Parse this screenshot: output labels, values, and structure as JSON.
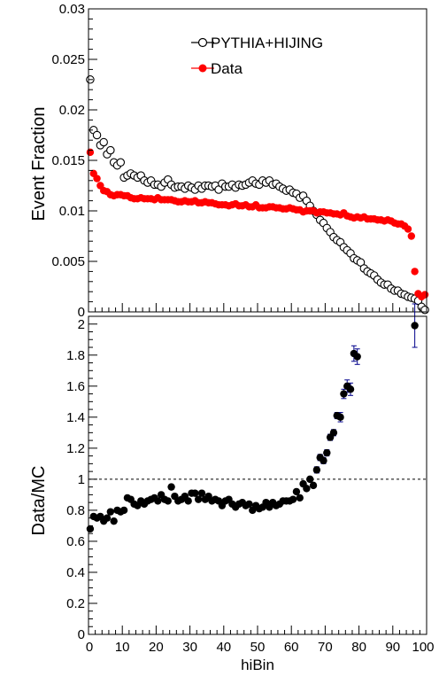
{
  "chart_data": [
    {
      "type": "scatter",
      "ylabel": "Event Fraction",
      "ylim": [
        0,
        0.03
      ],
      "xlim": [
        0,
        100
      ],
      "yticks": [
        0,
        0.005,
        0.01,
        0.015,
        0.02,
        0.025,
        0.03
      ],
      "ytick_labels": [
        "0",
        "0.005",
        "0.01",
        "0.015",
        "0.02",
        "0.025",
        "0.03"
      ],
      "legend_position": "top-right",
      "series": [
        {
          "name": "PYTHIA+HIJING",
          "marker": "open-circle",
          "color": "#000000",
          "x": [
            0.5,
            1.5,
            2.5,
            3.5,
            4.5,
            5.5,
            6.5,
            7.5,
            8.5,
            9.5,
            10.5,
            11.5,
            12.5,
            13.5,
            14.5,
            15.5,
            16.5,
            17.5,
            18.5,
            19.5,
            20.5,
            21.5,
            22.5,
            23.5,
            24.5,
            25.5,
            26.5,
            27.5,
            28.5,
            29.5,
            30.5,
            31.5,
            32.5,
            33.5,
            34.5,
            35.5,
            36.5,
            37.5,
            38.5,
            39.5,
            40.5,
            41.5,
            42.5,
            43.5,
            44.5,
            45.5,
            46.5,
            47.5,
            48.5,
            49.5,
            50.5,
            51.5,
            52.5,
            53.5,
            54.5,
            55.5,
            56.5,
            57.5,
            58.5,
            59.5,
            60.5,
            61.5,
            62.5,
            63.5,
            64.5,
            65.5,
            66.5,
            67.5,
            68.5,
            69.5,
            70.5,
            71.5,
            72.5,
            73.5,
            74.5,
            75.5,
            76.5,
            77.5,
            78.5,
            79.5,
            80.5,
            81.5,
            82.5,
            83.5,
            84.5,
            85.5,
            86.5,
            87.5,
            88.5,
            89.5,
            90.5,
            91.5,
            92.5,
            93.5,
            94.5,
            95.5,
            96.5,
            97.5,
            98.5,
            99.5
          ],
          "y": [
            0.023,
            0.018,
            0.0175,
            0.0165,
            0.0168,
            0.0156,
            0.016,
            0.0148,
            0.0145,
            0.0148,
            0.0133,
            0.0135,
            0.0137,
            0.0135,
            0.0133,
            0.0135,
            0.013,
            0.0128,
            0.013,
            0.0126,
            0.0126,
            0.0124,
            0.0128,
            0.0131,
            0.0126,
            0.0123,
            0.0124,
            0.0124,
            0.0122,
            0.0125,
            0.0123,
            0.0121,
            0.0125,
            0.0122,
            0.0125,
            0.0125,
            0.0124,
            0.0125,
            0.0121,
            0.0127,
            0.0124,
            0.0124,
            0.0126,
            0.0123,
            0.0126,
            0.0125,
            0.0126,
            0.0128,
            0.013,
            0.0127,
            0.0126,
            0.013,
            0.0128,
            0.013,
            0.0126,
            0.0127,
            0.0124,
            0.0122,
            0.012,
            0.0121,
            0.0118,
            0.0117,
            0.0113,
            0.0115,
            0.011,
            0.0105,
            0.01,
            0.0096,
            0.0091,
            0.0088,
            0.0083,
            0.0079,
            0.0074,
            0.0071,
            0.0069,
            0.0064,
            0.0061,
            0.0058,
            0.0053,
            0.0051,
            0.0049,
            0.0043,
            0.004,
            0.0038,
            0.0036,
            0.0032,
            0.0029,
            0.0027,
            0.0027,
            0.0023,
            0.0021,
            0.0021,
            0.0018,
            0.0017,
            0.0015,
            0.0014,
            0.0013,
            0.0011,
            0.0005,
            0.0002
          ]
        },
        {
          "name": "Data",
          "marker": "filled-circle",
          "color": "#ff0000",
          "x": [
            0.5,
            1.5,
            2.5,
            3.5,
            4.5,
            5.5,
            6.5,
            7.5,
            8.5,
            9.5,
            10.5,
            11.5,
            12.5,
            13.5,
            14.5,
            15.5,
            16.5,
            17.5,
            18.5,
            19.5,
            20.5,
            21.5,
            22.5,
            23.5,
            24.5,
            25.5,
            26.5,
            27.5,
            28.5,
            29.5,
            30.5,
            31.5,
            32.5,
            33.5,
            34.5,
            35.5,
            36.5,
            37.5,
            38.5,
            39.5,
            40.5,
            41.5,
            42.5,
            43.5,
            44.5,
            45.5,
            46.5,
            47.5,
            48.5,
            49.5,
            50.5,
            51.5,
            52.5,
            53.5,
            54.5,
            55.5,
            56.5,
            57.5,
            58.5,
            59.5,
            60.5,
            61.5,
            62.5,
            63.5,
            64.5,
            65.5,
            66.5,
            67.5,
            68.5,
            69.5,
            70.5,
            71.5,
            72.5,
            73.5,
            74.5,
            75.5,
            76.5,
            77.5,
            78.5,
            79.5,
            80.5,
            81.5,
            82.5,
            83.5,
            84.5,
            85.5,
            86.5,
            87.5,
            88.5,
            89.5,
            90.5,
            91.5,
            92.5,
            93.5,
            94.5,
            95.5,
            96.5,
            97.5,
            98.5,
            99.5
          ],
          "y": [
            0.0158,
            0.0137,
            0.0132,
            0.0125,
            0.012,
            0.0119,
            0.0116,
            0.0115,
            0.0116,
            0.0116,
            0.0115,
            0.0115,
            0.0113,
            0.0112,
            0.0112,
            0.0113,
            0.0112,
            0.0112,
            0.0112,
            0.0111,
            0.0113,
            0.0111,
            0.0111,
            0.0111,
            0.0111,
            0.011,
            0.0109,
            0.0109,
            0.011,
            0.0109,
            0.0109,
            0.011,
            0.0108,
            0.0108,
            0.0109,
            0.0108,
            0.0108,
            0.0107,
            0.0106,
            0.0106,
            0.0106,
            0.0105,
            0.0106,
            0.0107,
            0.0105,
            0.0105,
            0.0106,
            0.0104,
            0.0104,
            0.0106,
            0.0103,
            0.0103,
            0.0103,
            0.0104,
            0.0104,
            0.0103,
            0.0103,
            0.0102,
            0.0102,
            0.0103,
            0.0102,
            0.0101,
            0.0101,
            0.0099,
            0.01,
            0.01,
            0.01,
            0.0098,
            0.0099,
            0.0099,
            0.0098,
            0.0098,
            0.0097,
            0.0097,
            0.0096,
            0.0098,
            0.0095,
            0.0094,
            0.0093,
            0.0094,
            0.0093,
            0.0094,
            0.0092,
            0.0092,
            0.0092,
            0.0091,
            0.0091,
            0.009,
            0.0091,
            0.009,
            0.0088,
            0.0087,
            0.0087,
            0.0085,
            0.0082,
            0.0075,
            0.004,
            0.0018,
            0.0015,
            0.0017
          ]
        }
      ]
    },
    {
      "type": "scatter",
      "xlabel": "hiBin",
      "ylabel": "Data/MC",
      "xlim": [
        0,
        100
      ],
      "ylim": [
        0,
        2.05
      ],
      "xticks": [
        0,
        10,
        20,
        30,
        40,
        50,
        60,
        70,
        80,
        90,
        100
      ],
      "xtick_labels": [
        "0",
        "10",
        "20",
        "30",
        "40",
        "50",
        "60",
        "70",
        "80",
        "90",
        "100"
      ],
      "yticks": [
        0,
        0.2,
        0.4,
        0.6,
        0.8,
        1,
        1.2,
        1.4,
        1.6,
        1.8,
        2
      ],
      "ytick_labels": [
        "0",
        "0.2",
        "0.4",
        "0.6",
        "0.8",
        "1",
        "1.2",
        "1.4",
        "1.6",
        "1.8",
        "2"
      ],
      "reference_line": 1,
      "series": [
        {
          "marker": "filled-circle",
          "color": "#000000",
          "x": [
            0.5,
            1.5,
            2.5,
            3.5,
            4.5,
            5.5,
            6.5,
            7.5,
            8.5,
            9.5,
            10.5,
            11.5,
            12.5,
            13.5,
            14.5,
            15.5,
            16.5,
            17.5,
            18.5,
            19.5,
            20.5,
            21.5,
            22.5,
            23.5,
            24.5,
            25.5,
            26.5,
            27.5,
            28.5,
            29.5,
            30.5,
            31.5,
            32.5,
            33.5,
            34.5,
            35.5,
            36.5,
            37.5,
            38.5,
            39.5,
            40.5,
            41.5,
            42.5,
            43.5,
            44.5,
            45.5,
            46.5,
            47.5,
            48.5,
            49.5,
            50.5,
            51.5,
            52.5,
            53.5,
            54.5,
            55.5,
            56.5,
            57.5,
            58.5,
            59.5,
            60.5,
            61.5,
            62.5,
            63.5,
            64.5,
            65.5,
            66.5,
            67.5,
            68.5,
            69.5,
            70.5,
            71.5,
            72.5,
            73.5,
            74.5,
            75.5,
            76.5,
            77.5,
            78.5,
            79.5,
            96.5
          ],
          "y": [
            0.68,
            0.76,
            0.75,
            0.76,
            0.73,
            0.75,
            0.79,
            0.73,
            0.8,
            0.79,
            0.8,
            0.88,
            0.87,
            0.84,
            0.83,
            0.86,
            0.84,
            0.86,
            0.87,
            0.88,
            0.86,
            0.9,
            0.87,
            0.86,
            0.95,
            0.89,
            0.86,
            0.87,
            0.89,
            0.86,
            0.91,
            0.91,
            0.87,
            0.91,
            0.87,
            0.89,
            0.86,
            0.87,
            0.86,
            0.83,
            0.86,
            0.87,
            0.84,
            0.82,
            0.84,
            0.85,
            0.83,
            0.84,
            0.8,
            0.83,
            0.81,
            0.82,
            0.85,
            0.82,
            0.85,
            0.83,
            0.84,
            0.86,
            0.86,
            0.86,
            0.87,
            0.92,
            0.88,
            0.97,
            0.94,
            1.0,
            0.96,
            1.06,
            1.14,
            1.12,
            1.17,
            1.27,
            1.3,
            1.41,
            1.4,
            1.55,
            1.6,
            1.58,
            1.81,
            1.79,
            1.99
          ],
          "errors": [
            0.01,
            0.01,
            0.01,
            0.01,
            0.01,
            0.01,
            0.01,
            0.01,
            0.01,
            0.01,
            0.01,
            0.01,
            0.01,
            0.01,
            0.01,
            0.01,
            0.01,
            0.01,
            0.01,
            0.01,
            0.01,
            0.01,
            0.01,
            0.01,
            0.01,
            0.01,
            0.01,
            0.01,
            0.01,
            0.01,
            0.01,
            0.01,
            0.01,
            0.01,
            0.01,
            0.01,
            0.01,
            0.01,
            0.01,
            0.01,
            0.01,
            0.01,
            0.01,
            0.01,
            0.01,
            0.01,
            0.01,
            0.01,
            0.01,
            0.01,
            0.01,
            0.01,
            0.01,
            0.01,
            0.01,
            0.01,
            0.01,
            0.01,
            0.01,
            0.01,
            0.01,
            0.01,
            0.01,
            0.01,
            0.01,
            0.01,
            0.01,
            0.02,
            0.02,
            0.02,
            0.02,
            0.02,
            0.02,
            0.02,
            0.03,
            0.03,
            0.04,
            0.04,
            0.05,
            0.05,
            0.14
          ]
        }
      ]
    }
  ]
}
